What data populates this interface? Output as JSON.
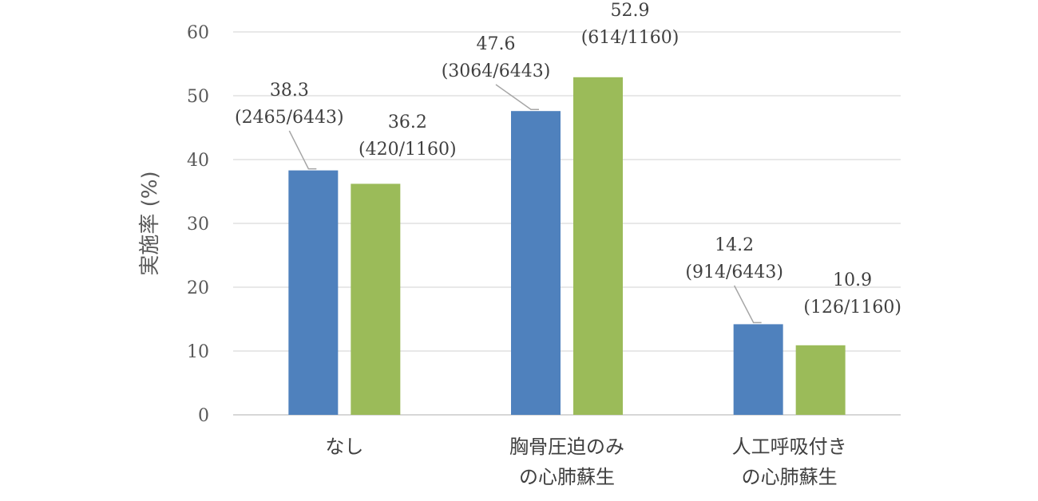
{
  "chart_data": {
    "type": "bar",
    "title": "",
    "xlabel": "",
    "ylabel": "実施率 (%)",
    "ylim": [
      0,
      60
    ],
    "yticks": [
      0,
      10,
      20,
      30,
      40,
      50,
      60
    ],
    "grid": true,
    "categories": [
      [
        "なし"
      ],
      [
        "胸骨圧迫のみ",
        "の心肺蘇生"
      ],
      [
        "人工呼吸付き",
        "の心肺蘇生"
      ]
    ],
    "series": [
      {
        "color": "#4F81BD",
        "values": [
          38.3,
          47.6,
          14.2
        ],
        "labels": [
          [
            "38.3",
            "(2465/6443)"
          ],
          [
            "47.6",
            "(3064/6443)"
          ],
          [
            "14.2",
            "(914/6443)"
          ]
        ]
      },
      {
        "color": "#9BBB59",
        "values": [
          36.2,
          52.9,
          10.9
        ],
        "labels": [
          [
            "36.2",
            "(420/1160)"
          ],
          [
            "52.9",
            "(614/1160)"
          ],
          [
            "10.9",
            "(126/1160)"
          ]
        ]
      }
    ]
  }
}
